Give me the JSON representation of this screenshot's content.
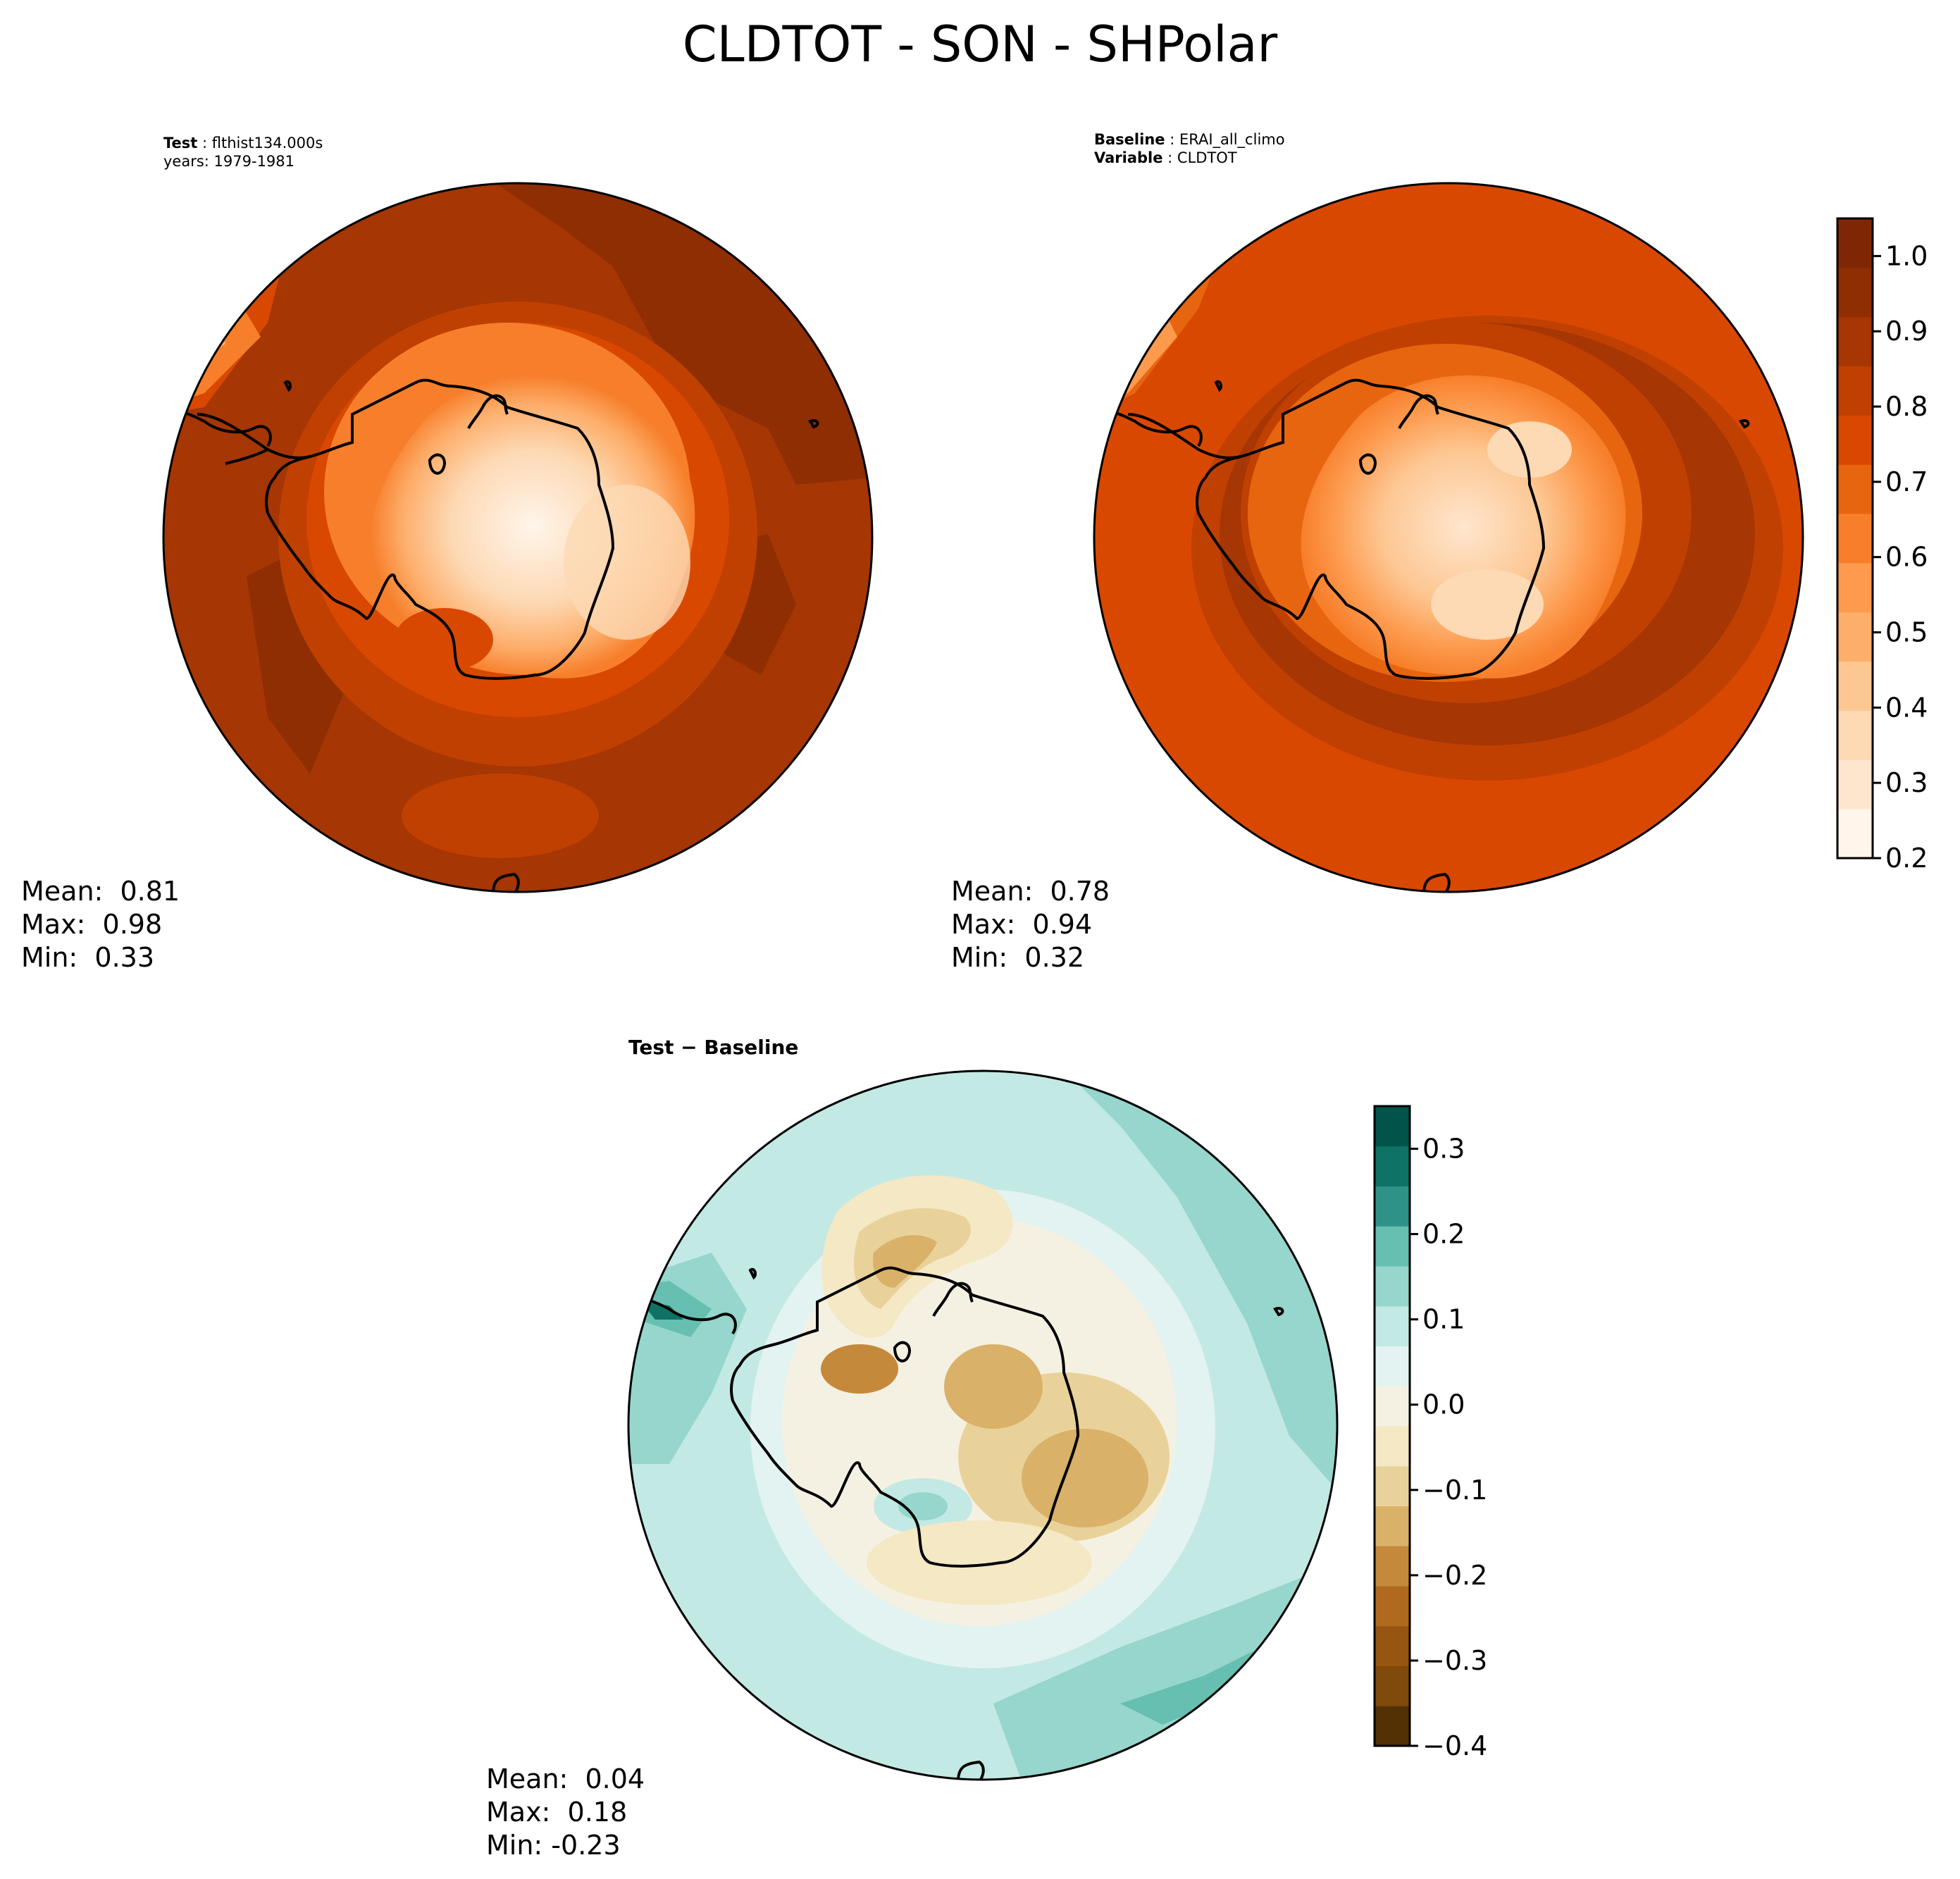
{
  "figure_title": "CLDTOT - SON - SHPolar",
  "test_panel": {
    "label_key": "Test",
    "label_value": "flthist134.000s",
    "years": "years: 1979-1981",
    "stats": {
      "mean": "Mean:  0.81",
      "max": "Max:  0.98",
      "min": "Min:  0.33"
    }
  },
  "baseline_panel": {
    "label_key": "Baseline",
    "label_value": "ERAI_all_climo",
    "variable_key": "Variable",
    "variable_value": "CLDTOT",
    "stats": {
      "mean": "Mean:  0.78",
      "max": "Max:  0.94",
      "min": "Min:  0.32"
    }
  },
  "diff_panel": {
    "title": "Test − Baseline",
    "stats": {
      "mean": "Mean:  0.04",
      "max": "Max:  0.18",
      "min": "Min: -0.23"
    }
  },
  "colorbar_main": {
    "ticks": [
      "0.2",
      "0.3",
      "0.4",
      "0.5",
      "0.6",
      "0.7",
      "0.8",
      "0.9",
      "1.0"
    ],
    "range": [
      0.2,
      1.05
    ],
    "colors": [
      "#fff5eb",
      "#fee6ce",
      "#fdd9b4",
      "#fdc793",
      "#fdae6b",
      "#fd9a4d",
      "#f77f2b",
      "#e8650f",
      "#d94801",
      "#c04002",
      "#a63603",
      "#8f2e03",
      "#7f2704"
    ]
  },
  "colorbar_diff": {
    "ticks": [
      "0.3",
      "0.2",
      "0.1",
      "0.0",
      "−0.1",
      "−0.2",
      "−0.3",
      "−0.4"
    ],
    "range": [
      -0.4,
      0.35
    ],
    "colors": [
      "#543005",
      "#7f4a0b",
      "#965511",
      "#b06a1f",
      "#c5893b",
      "#d9b168",
      "#e9d29a",
      "#f4e8c5",
      "#f5f1e2",
      "#e3f3f1",
      "#c3e9e4",
      "#96d6cc",
      "#66bfb0",
      "#2f9289",
      "#0e7366",
      "#01544a"
    ]
  },
  "colors": {
    "test_ocean": "#a63603",
    "baseline_ocean": "#d94801",
    "diff_ocean": "#c3e9e4",
    "coastline": "#000000"
  }
}
